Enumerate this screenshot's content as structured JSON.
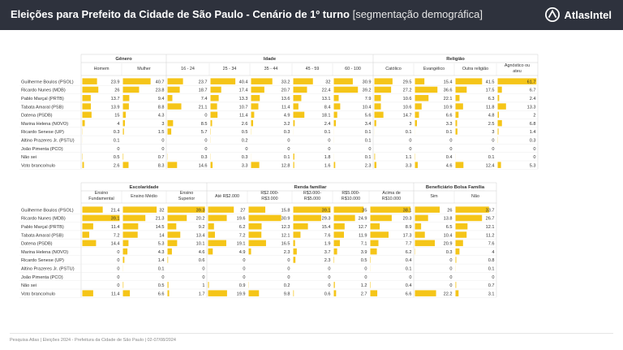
{
  "header": {
    "title_bold": "Eleições para Prefeito da Cidade de São Paulo - Cenário de 1º turno",
    "title_sub": "[segmentação demográfica]",
    "logo_text": "AtlasIntel"
  },
  "colors": {
    "bar": "#f5c518",
    "header_bg": "#2e323d"
  },
  "footer": "Pesquisa Atlas  |  Eleições 2024 - Prefeitura da Cidade de São Paulo  |  02-07/08/2024",
  "chart_data": [
    {
      "type": "table",
      "groups": [
        {
          "label": "Gênero",
          "span": 2
        },
        {
          "label": "Idade",
          "span": 5
        },
        {
          "label": "Religião",
          "span": 4
        }
      ],
      "columns": [
        [
          "Homem"
        ],
        [
          "Mulher"
        ],
        [
          "16 - 24"
        ],
        [
          "25 - 34"
        ],
        [
          "35 - 44"
        ],
        [
          "45 - 59"
        ],
        [
          "60 - 100"
        ],
        [
          "Católico"
        ],
        [
          "Evangélico"
        ],
        [
          "Outra religião"
        ],
        [
          "Agnóstico ou",
          "ateu"
        ]
      ],
      "rows": [
        {
          "label": "Guilherme Boulos (PSOL)",
          "values": [
            23.9,
            40.7,
            23.7,
            40.4,
            33.2,
            32,
            30.9,
            29.5,
            15.4,
            41.5,
            61.7
          ]
        },
        {
          "label": "Ricardo Nunes (MDB)",
          "values": [
            26,
            23.8,
            18.7,
            17.4,
            20.7,
            22.4,
            39.2,
            27.2,
            36.6,
            17.5,
            6.7
          ]
        },
        {
          "label": "Pablo Marçal (PRTB)",
          "values": [
            13.7,
            9.4,
            7.4,
            13.3,
            13.6,
            13.1,
            7.9,
            10.6,
            22.1,
            6.3,
            2.4
          ]
        },
        {
          "label": "Tabata Amaral (PSB)",
          "values": [
            13.9,
            8.8,
            21.1,
            10.7,
            11.4,
            8.4,
            10.4,
            10.6,
            10.9,
            11.8,
            13.3
          ]
        },
        {
          "label": "Datena (PSDB)",
          "values": [
            15,
            4.3,
            0,
            11.4,
            4.9,
            18.1,
            5.6,
            14.7,
            6.6,
            4.8,
            2
          ]
        },
        {
          "label": "Marina Helena (NOVO)",
          "values": [
            4,
            3,
            8.5,
            2.6,
            3.2,
            2.4,
            3.4,
            3,
            3.3,
            2.5,
            6.8
          ]
        },
        {
          "label": "Ricardo Senese (UP)",
          "values": [
            0.3,
            1.5,
            5.7,
            0.5,
            0.3,
            0.1,
            0.1,
            0.1,
            0.1,
            3,
            1.4
          ]
        },
        {
          "label": "Altino Prazeres Jr. (PSTU)",
          "values": [
            0.1,
            0,
            0,
            0.2,
            0,
            0,
            0.1,
            0,
            0,
            0,
            0.3
          ]
        },
        {
          "label": "João Pimenta (PCO)",
          "values": [
            0,
            0,
            0,
            0,
            0,
            0,
            0,
            0,
            0,
            0,
            0
          ]
        },
        {
          "label": "Não sei",
          "values": [
            0.5,
            0.7,
            0.3,
            0.3,
            0.1,
            1.8,
            0.1,
            1.1,
            0.4,
            0.1,
            0
          ]
        },
        {
          "label": "Voto branco/nulo",
          "values": [
            2.6,
            8.3,
            14.6,
            3.3,
            12.8,
            1.6,
            2.3,
            3.3,
            4.6,
            12.4,
            5.3
          ]
        }
      ]
    },
    {
      "type": "table",
      "groups": [
        {
          "label": "Escolaridade",
          "span": 3
        },
        {
          "label": "Renda familiar",
          "span": 5
        },
        {
          "label": "Beneficiário Bolsa Família",
          "span": 2
        }
      ],
      "columns": [
        [
          "Ensino",
          "Fundamental"
        ],
        [
          "Ensino Médio"
        ],
        [
          "Ensino",
          "Superior"
        ],
        [
          "Até R$2.000"
        ],
        [
          "R$2.000-",
          "R$3.000"
        ],
        [
          "R$3.000-",
          "R$5.000"
        ],
        [
          "R$5.000-",
          "R$10.000"
        ],
        [
          "Acima de",
          "R$10.000"
        ],
        [
          "Sim"
        ],
        [
          "Não"
        ]
      ],
      "rows": [
        {
          "label": "Guilherme Boulos (PSOL)",
          "values": [
            21.4,
            32,
            39.3,
            27,
            15.8,
            39.1,
            35,
            38.1,
            26,
            33.7
          ]
        },
        {
          "label": "Ricardo Nunes (MDB)",
          "values": [
            39.1,
            21.3,
            20.2,
            19.6,
            30.9,
            29.3,
            24.9,
            20.3,
            13.8,
            26.7
          ]
        },
        {
          "label": "Pablo Marçal (PRTB)",
          "values": [
            11.4,
            14.5,
            9.2,
            6.2,
            12.3,
            15.4,
            12.7,
            8.9,
            6.5,
            12.1
          ]
        },
        {
          "label": "Tabata Amaral (PSB)",
          "values": [
            7.2,
            14,
            13.4,
            7.2,
            12.1,
            7.6,
            11.9,
            17.3,
            10.4,
            11.2
          ]
        },
        {
          "label": "Datena (PSDB)",
          "values": [
            14.4,
            5.3,
            10.1,
            19.1,
            16.5,
            1.9,
            7.1,
            7.7,
            20.9,
            7.6
          ]
        },
        {
          "label": "Marina Helena (NOVO)",
          "values": [
            0,
            4.3,
            4.6,
            4.9,
            2.3,
            3.7,
            3.9,
            6.2,
            0.3,
            4
          ]
        },
        {
          "label": "Ricardo Senese (UP)",
          "values": [
            0,
            1.4,
            0.6,
            0,
            0,
            2.3,
            0.5,
            0.4,
            0,
            0.8
          ]
        },
        {
          "label": "Altino Prazeres Jr. (PSTU)",
          "values": [
            0,
            0.1,
            0,
            0,
            0,
            0,
            0,
            0.1,
            0,
            0.1
          ]
        },
        {
          "label": "João Pimenta (PCO)",
          "values": [
            0,
            0,
            0,
            0,
            0,
            0,
            0,
            0,
            0,
            0
          ]
        },
        {
          "label": "Não sei",
          "values": [
            0,
            0.5,
            1,
            0.9,
            0.2,
            0,
            1.2,
            0.4,
            0,
            0.7
          ]
        },
        {
          "label": "Voto branco/nulo",
          "values": [
            11.4,
            6.6,
            1.7,
            19.9,
            9.8,
            0.6,
            2.7,
            6.6,
            22.2,
            3.1
          ]
        }
      ]
    }
  ]
}
